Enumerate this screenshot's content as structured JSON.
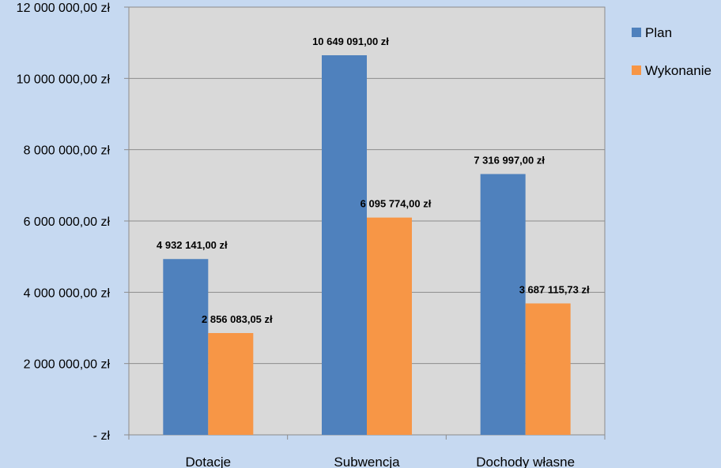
{
  "chart_data": {
    "type": "bar",
    "categories": [
      "Dotacje",
      "Subwencja",
      "Dochody własne"
    ],
    "series": [
      {
        "name": "Plan",
        "color": "#4f81bd",
        "values": [
          4932141.0,
          10649091.0,
          7316997.0
        ],
        "labels": [
          "4 932 141,00 zł",
          "10 649 091,00 zł",
          "7 316 997,00 zł"
        ]
      },
      {
        "name": "Wykonanie",
        "color": "#f79646",
        "values": [
          2856083.05,
          6095774.0,
          3687115.73
        ],
        "labels": [
          "2 856 083,05 zł",
          "6 095 774,00 zł",
          "3 687 115,73 zł"
        ]
      }
    ],
    "ylim": [
      0,
      12000000
    ],
    "yticks": [
      0,
      2000000,
      4000000,
      6000000,
      8000000,
      10000000,
      12000000
    ],
    "ytick_labels": [
      "-   zł",
      "2 000 000,00 zł",
      "4 000 000,00 zł",
      "6 000 000,00 zł",
      "8 000 000,00 zł",
      "10 000 000,00 zł",
      "12 000 000,00 zł"
    ],
    "grid": true,
    "legend_position": "right",
    "plot_background": "#d9d9d9",
    "page_background": "#c6d9f1"
  }
}
